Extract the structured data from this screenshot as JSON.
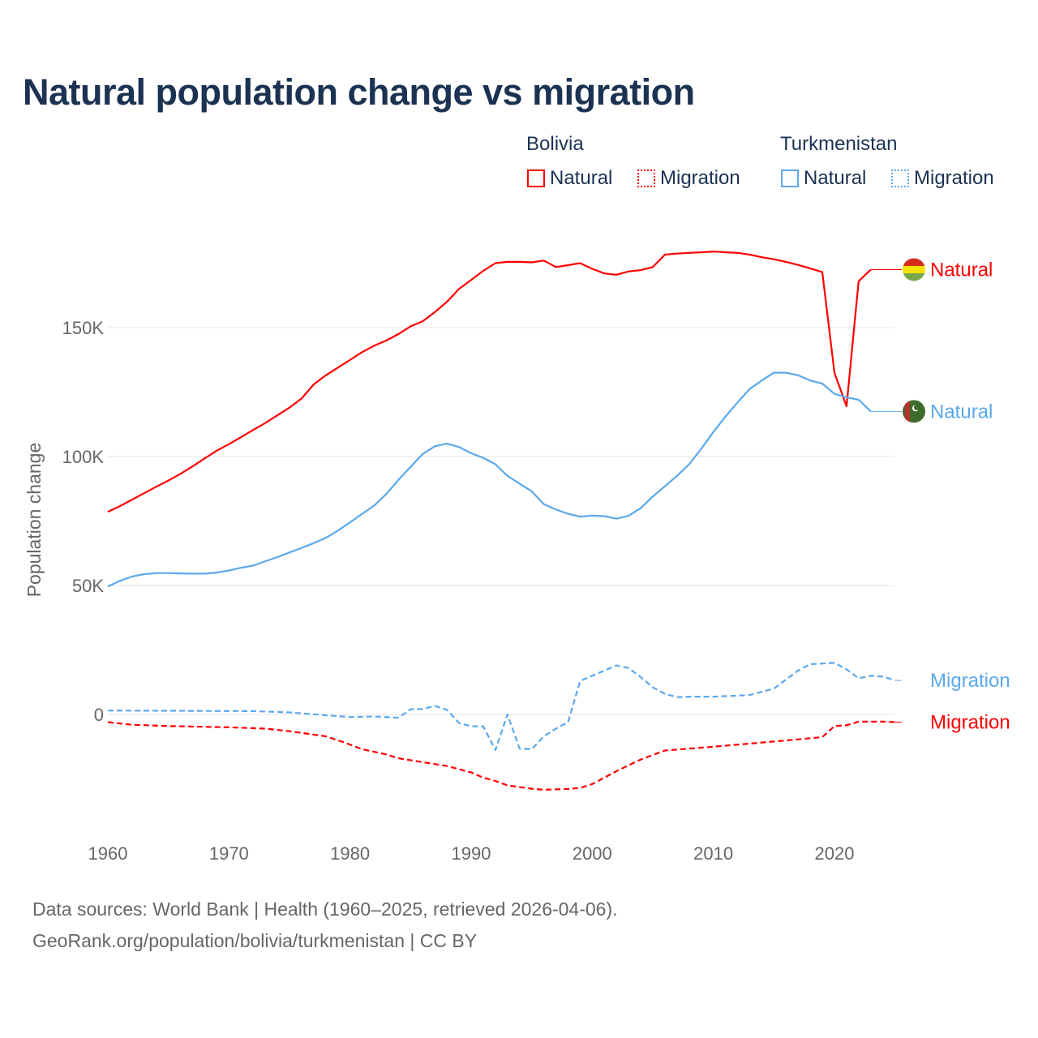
{
  "chart_data": {
    "type": "line",
    "title": "Natural population change vs migration",
    "ylabel": "Population change",
    "xlabel": "",
    "xlim": [
      1960,
      2025
    ],
    "ylim": [
      -40000,
      185000
    ],
    "x_ticks": [
      "1960",
      "1970",
      "1980",
      "1990",
      "2000",
      "2010",
      "2020"
    ],
    "y_ticks": [
      {
        "value": 0,
        "label": "0"
      },
      {
        "value": 50000,
        "label": "50K"
      },
      {
        "value": 100000,
        "label": "100K"
      },
      {
        "value": 150000,
        "label": "150K"
      }
    ],
    "grid": "horizontal",
    "legend": {
      "groups": [
        {
          "country": "Bolivia",
          "items": [
            "Natural",
            "Migration"
          ]
        },
        {
          "country": "Turkmenistan",
          "items": [
            "Natural",
            "Migration"
          ]
        }
      ],
      "placement": "top-right"
    },
    "series": [
      {
        "name": "Natural",
        "country": "Bolivia",
        "color": "#ff0000",
        "dash": false,
        "end_label": "Natural",
        "points": [
          [
            1960,
            78600
          ],
          [
            1961,
            80800
          ],
          [
            1962,
            83300
          ],
          [
            1963,
            85800
          ],
          [
            1964,
            88300
          ],
          [
            1965,
            90700
          ],
          [
            1966,
            93300
          ],
          [
            1967,
            96200
          ],
          [
            1968,
            99300
          ],
          [
            1969,
            102300
          ],
          [
            1970,
            104800
          ],
          [
            1971,
            107500
          ],
          [
            1972,
            110300
          ],
          [
            1973,
            113000
          ],
          [
            1974,
            116000
          ],
          [
            1975,
            119000
          ],
          [
            1976,
            122500
          ],
          [
            1977,
            128000
          ],
          [
            1978,
            131500
          ],
          [
            1979,
            134500
          ],
          [
            1980,
            137500
          ],
          [
            1981,
            140500
          ],
          [
            1982,
            143000
          ],
          [
            1983,
            145000
          ],
          [
            1984,
            147500
          ],
          [
            1985,
            150500
          ],
          [
            1986,
            152500
          ],
          [
            1987,
            156000
          ],
          [
            1988,
            160000
          ],
          [
            1989,
            165000
          ],
          [
            1990,
            168500
          ],
          [
            1991,
            172000
          ],
          [
            1992,
            175000
          ],
          [
            1993,
            175500
          ],
          [
            1994,
            175500
          ],
          [
            1995,
            175300
          ],
          [
            1996,
            176000
          ],
          [
            1997,
            173500
          ],
          [
            1998,
            174200
          ],
          [
            1999,
            175000
          ],
          [
            2000,
            172800
          ],
          [
            2001,
            171000
          ],
          [
            2002,
            170500
          ],
          [
            2003,
            171800
          ],
          [
            2004,
            172300
          ],
          [
            2005,
            173500
          ],
          [
            2006,
            178300
          ],
          [
            2007,
            178700
          ],
          [
            2008,
            179000
          ],
          [
            2009,
            179200
          ],
          [
            2010,
            179500
          ],
          [
            2011,
            179200
          ],
          [
            2012,
            179000
          ],
          [
            2013,
            178300
          ],
          [
            2014,
            177300
          ],
          [
            2015,
            176500
          ],
          [
            2016,
            175500
          ],
          [
            2017,
            174300
          ],
          [
            2018,
            173000
          ],
          [
            2019,
            171500
          ],
          [
            2020,
            132500
          ],
          [
            2021,
            119500
          ],
          [
            2022,
            168000
          ],
          [
            2023,
            172500
          ]
        ]
      },
      {
        "name": "Migration",
        "country": "Bolivia",
        "color": "#ff0000",
        "dash": true,
        "end_label": "Migration",
        "points": [
          [
            1960,
            -3000
          ],
          [
            1962,
            -4000
          ],
          [
            1965,
            -4500
          ],
          [
            1970,
            -5000
          ],
          [
            1973,
            -5500
          ],
          [
            1975,
            -6500
          ],
          [
            1978,
            -8500
          ],
          [
            1979,
            -10000
          ],
          [
            1980,
            -11700
          ],
          [
            1981,
            -13500
          ],
          [
            1982,
            -14500
          ],
          [
            1983,
            -15500
          ],
          [
            1984,
            -17000
          ],
          [
            1986,
            -18500
          ],
          [
            1988,
            -20000
          ],
          [
            1990,
            -22500
          ],
          [
            1991,
            -24500
          ],
          [
            1992,
            -25800
          ],
          [
            1993,
            -27500
          ],
          [
            1995,
            -28800
          ],
          [
            1996,
            -29200
          ],
          [
            1998,
            -28900
          ],
          [
            1999,
            -28500
          ],
          [
            2000,
            -27000
          ],
          [
            2001,
            -24500
          ],
          [
            2002,
            -22000
          ],
          [
            2004,
            -17500
          ],
          [
            2006,
            -14000
          ],
          [
            2010,
            -12500
          ],
          [
            2015,
            -10500
          ],
          [
            2019,
            -8800
          ],
          [
            2020,
            -4500
          ],
          [
            2021,
            -4200
          ],
          [
            2022,
            -2800
          ],
          [
            2024,
            -2800
          ],
          [
            2025,
            -3000
          ]
        ]
      },
      {
        "name": "Natural",
        "country": "Turkmenistan",
        "color": "#5ba8ec",
        "dash": false,
        "end_label": "Natural",
        "points": [
          [
            1960,
            49600
          ],
          [
            1961,
            51800
          ],
          [
            1962,
            53500
          ],
          [
            1963,
            54400
          ],
          [
            1964,
            54800
          ],
          [
            1965,
            54800
          ],
          [
            1966,
            54700
          ],
          [
            1967,
            54600
          ],
          [
            1968,
            54600
          ],
          [
            1969,
            55000
          ],
          [
            1970,
            55800
          ],
          [
            1971,
            56900
          ],
          [
            1972,
            57700
          ],
          [
            1973,
            59400
          ],
          [
            1974,
            61000
          ],
          [
            1975,
            62800
          ],
          [
            1976,
            64600
          ],
          [
            1977,
            66400
          ],
          [
            1978,
            68500
          ],
          [
            1979,
            71300
          ],
          [
            1980,
            74500
          ],
          [
            1981,
            77800
          ],
          [
            1982,
            81000
          ],
          [
            1983,
            85500
          ],
          [
            1984,
            91000
          ],
          [
            1985,
            96000
          ],
          [
            1986,
            101000
          ],
          [
            1987,
            104000
          ],
          [
            1988,
            105000
          ],
          [
            1989,
            103700
          ],
          [
            1990,
            101300
          ],
          [
            1991,
            99500
          ],
          [
            1992,
            97000
          ],
          [
            1993,
            92500
          ],
          [
            1994,
            89500
          ],
          [
            1995,
            86500
          ],
          [
            1996,
            81500
          ],
          [
            1997,
            79500
          ],
          [
            1998,
            77800
          ],
          [
            1999,
            76700
          ],
          [
            2000,
            77100
          ],
          [
            2001,
            76900
          ],
          [
            2002,
            75900
          ],
          [
            2003,
            77000
          ],
          [
            2004,
            80000
          ],
          [
            2005,
            84500
          ],
          [
            2006,
            88500
          ],
          [
            2007,
            92500
          ],
          [
            2008,
            97000
          ],
          [
            2009,
            103000
          ],
          [
            2010,
            109500
          ],
          [
            2011,
            115500
          ],
          [
            2012,
            121000
          ],
          [
            2013,
            126200
          ],
          [
            2014,
            129500
          ],
          [
            2015,
            132500
          ],
          [
            2016,
            132500
          ],
          [
            2017,
            131500
          ],
          [
            2018,
            129500
          ],
          [
            2019,
            128300
          ],
          [
            2020,
            124300
          ],
          [
            2021,
            123000
          ],
          [
            2022,
            122000
          ],
          [
            2023,
            117500
          ]
        ]
      },
      {
        "name": "Migration",
        "country": "Turkmenistan",
        "color": "#5ba8ec",
        "dash": true,
        "end_label": "Migration",
        "points": [
          [
            1960,
            1500
          ],
          [
            1965,
            1400
          ],
          [
            1972,
            1300
          ],
          [
            1975,
            800
          ],
          [
            1978,
            -300
          ],
          [
            1980,
            -1000
          ],
          [
            1982,
            -800
          ],
          [
            1984,
            -1300
          ],
          [
            1985,
            2000
          ],
          [
            1986,
            2100
          ],
          [
            1987,
            3300
          ],
          [
            1988,
            1800
          ],
          [
            1989,
            -3300
          ],
          [
            1990,
            -4600
          ],
          [
            1991,
            -4600
          ],
          [
            1992,
            -13800
          ],
          [
            1993,
            0
          ],
          [
            1994,
            -13200
          ],
          [
            1995,
            -13500
          ],
          [
            1996,
            -8500
          ],
          [
            1997,
            -5500
          ],
          [
            1998,
            -3000
          ],
          [
            1999,
            13000
          ],
          [
            2000,
            15000
          ],
          [
            2001,
            17000
          ],
          [
            2002,
            19000
          ],
          [
            2003,
            18000
          ],
          [
            2004,
            14500
          ],
          [
            2005,
            10500
          ],
          [
            2006,
            8000
          ],
          [
            2007,
            6700
          ],
          [
            2008,
            6900
          ],
          [
            2010,
            6900
          ],
          [
            2013,
            7500
          ],
          [
            2015,
            10000
          ],
          [
            2016,
            13500
          ],
          [
            2017,
            17000
          ],
          [
            2018,
            19500
          ],
          [
            2020,
            20000
          ],
          [
            2021,
            17500
          ],
          [
            2022,
            14000
          ],
          [
            2023,
            15000
          ],
          [
            2024,
            14700
          ],
          [
            2025,
            13200
          ]
        ]
      }
    ]
  },
  "footer": {
    "line1": "Data sources: World Bank | Health (1960–2025, retrieved 2026-04-06).",
    "line2": "GeoRank.org/population/bolivia/turkmenistan | CC BY"
  },
  "colors": {
    "bolivia": "#ff0000",
    "turkmenistan": "#5ba8ec",
    "title": "#1b3252"
  }
}
